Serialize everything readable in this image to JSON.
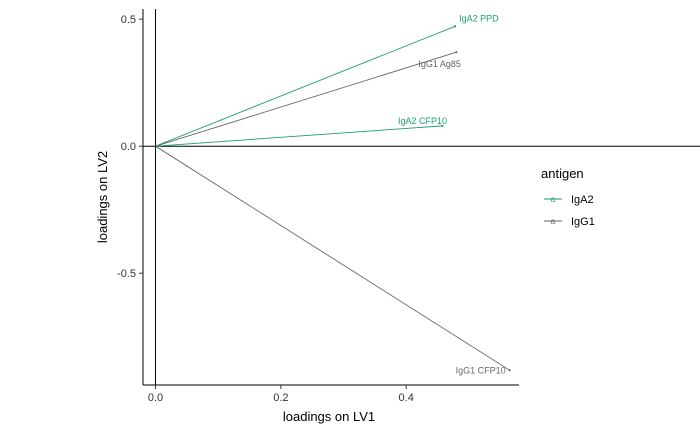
{
  "colors": {
    "IgA2": "#1b9e77",
    "IgG1": "#666666"
  },
  "chart_data": {
    "type": "line",
    "xlabel": "loadings on LV1",
    "ylabel": "loadings on LV2",
    "xlim": [
      -0.02,
      0.58
    ],
    "ylim": [
      -0.94,
      0.54
    ],
    "x_ticks": [
      0.0,
      0.2,
      0.4
    ],
    "x_tick_labels": [
      "0.0",
      "0.2",
      "0.4"
    ],
    "y_ticks": [
      0.5,
      0.0,
      -0.5
    ],
    "y_tick_labels": [
      "0.5",
      "0.0",
      "-0.5"
    ],
    "reference_lines": {
      "horizontal_at_y": 0.0,
      "vertical_at_x": 0.0
    },
    "grid": false,
    "legend": {
      "title": "antigen",
      "placement": "right",
      "entries": [
        {
          "name": "IgA2",
          "key": "a"
        },
        {
          "name": "IgG1",
          "key": "a"
        }
      ]
    },
    "series": [
      {
        "name": "IgA2",
        "points": [
          {
            "label": "IgA2 PPD",
            "x": [
              0.0,
              0.478
            ],
            "y": [
              0.0,
              0.472
            ]
          },
          {
            "label": "IgA2 CFP10",
            "x": [
              0.0,
              0.458
            ],
            "y": [
              0.0,
              0.08
            ]
          }
        ]
      },
      {
        "name": "IgG1",
        "points": [
          {
            "label": "IgG1 Ag85",
            "x": [
              0.0,
              0.48
            ],
            "y": [
              0.0,
              0.37
            ]
          },
          {
            "label": "IgG1 CFP10",
            "x": [
              0.0,
              0.565
            ],
            "y": [
              0.0,
              -0.882
            ]
          }
        ]
      }
    ]
  }
}
